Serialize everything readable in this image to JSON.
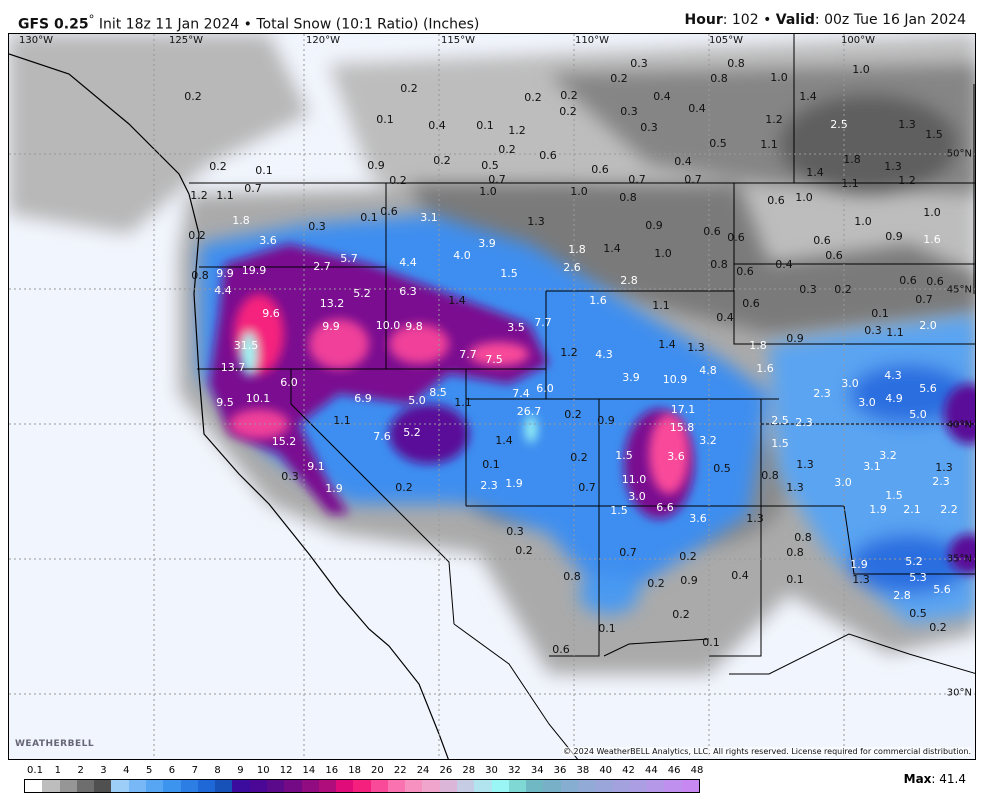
{
  "header": {
    "model": "GFS 0.25",
    "degree": "°",
    "init": " Init 18z 11 Jan 2024 • Total Snow (10:1 Ratio) (Inches)",
    "hour_label": "Hour",
    "hour": ": 102 • ",
    "valid_label": "Valid",
    "valid": ": 00z Tue 16 Jan 2024"
  },
  "map": {
    "longitudes": [
      "130°W",
      "125°W",
      "120°W",
      "115°W",
      "110°W",
      "105°W",
      "100°W"
    ],
    "latitudes": [
      "50°N",
      "45°N",
      "40°N",
      "35°N",
      "30°N"
    ],
    "copyright": "© 2024 WeatherBELL Analytics, LLC. All rights reserved. License required for commercial distribution.",
    "logo": "WeatherBELL",
    "values": [
      "31.5",
      "13.7",
      "9.5",
      "10.1",
      "15.2",
      "9.1",
      "6.0",
      "9.6",
      "13.2",
      "9.9",
      "19.9",
      "9.9",
      "4.4",
      "3.6",
      "2.7",
      "5.7",
      "5.2",
      "4.4",
      "6.3",
      "10.0",
      "9.8",
      "4.0",
      "3.9",
      "7.7",
      "7.5",
      "6.9",
      "5.0",
      "8.5",
      "7.6",
      "5.2",
      "1.1",
      "1.1",
      "7.4",
      "26.7",
      "6.0",
      "1.2",
      "4.3",
      "7.7",
      "3.5",
      "1.4",
      "1.5",
      "2.6",
      "1.6",
      "1.1",
      "1.4",
      "1.3",
      "4.8",
      "3.9",
      "10.9",
      "17.1",
      "15.8",
      "3.2",
      "3.6",
      "1.5",
      "11.0",
      "3.0",
      "6.6",
      "1.5",
      "3.6",
      "0.9",
      "0.2",
      "1.4",
      "0.1",
      "2.3",
      "1.9",
      "0.2",
      "0.7",
      "0.3",
      "0.2",
      "0.7",
      "0.2",
      "0.2",
      "0.9",
      "0.8",
      "0.1",
      "0.2",
      "0.6",
      "0.1",
      "0.4",
      "1.3",
      "0.8",
      "0.8",
      "0.1",
      "1.3",
      "0.8",
      "1.3",
      "1.5",
      "2.5",
      "2.3",
      "0.5",
      "1.6",
      "2.3",
      "1.8",
      "0.9",
      "0.4",
      "0.6",
      "0.3",
      "0.2",
      "0.4",
      "0.6",
      "0.6",
      "0.6",
      "1.0",
      "0.6",
      "0.6",
      "1.0",
      "0.9",
      "1.0",
      "1.6",
      "0.6",
      "0.6",
      "0.7",
      "0.1",
      "0.3",
      "1.1",
      "2.0",
      "3.0",
      "3.0",
      "4.3",
      "4.9",
      "5.6",
      "5.0",
      "3.2",
      "3.1",
      "1.3",
      "2.3",
      "3.0",
      "1.5",
      "1.9",
      "2.1",
      "2.2",
      "5.2",
      "5.3",
      "5.6",
      "1.9",
      "1.3",
      "2.8",
      "0.5",
      "0.2",
      "0.3",
      "1.9",
      "0.2",
      "0.2",
      "0.2",
      "0.1",
      "0.4",
      "0.1",
      "0.2",
      "0.9",
      "0.2",
      "0.5",
      "0.7",
      "0.2",
      "1.2",
      "0.2",
      "0.2",
      "0.2",
      "0.6",
      "0.3",
      "0.2",
      "0.4",
      "0.3",
      "0.3",
      "0.8",
      "0.8",
      "0.4",
      "0.5",
      "0.4",
      "0.6",
      "0.7",
      "0.7",
      "1.0",
      "1.4",
      "1.2",
      "1.1",
      "2.5",
      "1.3",
      "1.5",
      "1.0",
      "1.8",
      "1.3",
      "1.1",
      "1.2",
      "1.4",
      "0.8",
      "1.0",
      "1.0",
      "1.3",
      "0.9",
      "0.6",
      "1.8",
      "1.4",
      "1.0",
      "0.8",
      "2.8",
      "0.3",
      "0.1",
      "0.6",
      "3.1",
      "0.1",
      "0.7",
      "0.2",
      "1.2",
      "1.1",
      "1.8",
      "0.2",
      "0.8"
    ]
  },
  "colorbar": {
    "ticks": [
      "0.1",
      "1",
      "2",
      "3",
      "4",
      "5",
      "6",
      "7",
      "8",
      "9",
      "10",
      "12",
      "14",
      "16",
      "18",
      "20",
      "22",
      "24",
      "26",
      "28",
      "30",
      "32",
      "34",
      "36",
      "38",
      "40",
      "42",
      "44",
      "46",
      "48"
    ],
    "colors": [
      "#ffffff",
      "#bdbdbd",
      "#969696",
      "#6e6e6e",
      "#505050",
      "#9ccef8",
      "#78b8f6",
      "#56a6f4",
      "#3d94ef",
      "#2c7de4",
      "#1f68d8",
      "#1752b8",
      "#3c0c9e",
      "#4b0896",
      "#5c0a8c",
      "#750a86",
      "#900c80",
      "#b00d7c",
      "#e00c7a",
      "#f5207e",
      "#f94a9a",
      "#fb72b0",
      "#f792c0",
      "#f0a6cc",
      "#dcb6d8",
      "#c6cce4",
      "#b2e4f0",
      "#9af6f4",
      "#80d8d4",
      "#70b8c4",
      "#78b0c8",
      "#86aed0",
      "#92aad6",
      "#9aa6da",
      "#a4a2de",
      "#ac9ee2",
      "#b698e8",
      "#c090ee",
      "#c888f2"
    ],
    "max_label": "Max",
    "max_value": ": 41.4"
  }
}
